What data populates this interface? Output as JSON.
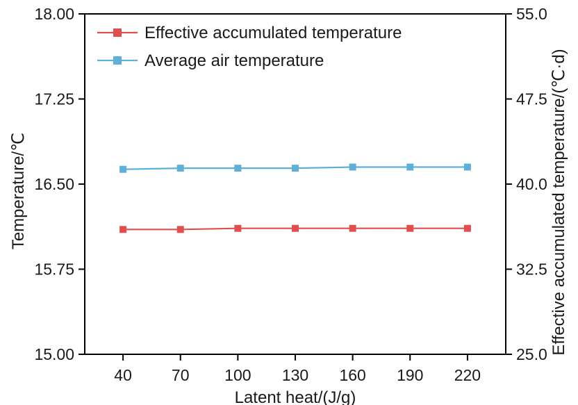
{
  "chart_data": {
    "type": "line",
    "title": "",
    "grid": false,
    "x_axis": {
      "label": "Latent heat/(J/g)",
      "min": 20,
      "max": 240,
      "tick_values": [
        40,
        70,
        100,
        130,
        160,
        190,
        220
      ],
      "ticks": [
        "40",
        "70",
        "100",
        "130",
        "160",
        "190",
        "220"
      ]
    },
    "left_axis": {
      "label": "Temperature/℃",
      "min": 15.0,
      "max": 18.0,
      "tick_values": [
        18.0,
        17.25,
        16.5,
        15.75,
        15.0
      ],
      "ticks": [
        "18.00",
        "17.25",
        "16.50",
        "15.75",
        "15.00"
      ]
    },
    "right_axis": {
      "label": "Effective accumulated temperature/(℃·d)",
      "min": 25.0,
      "max": 55.0,
      "tick_values": [
        55.0,
        47.5,
        40.0,
        32.5,
        25.0
      ],
      "ticks": [
        "55.0",
        "47.5",
        "40.0",
        "32.5",
        "25.0"
      ]
    },
    "legend": {
      "position": "top-left-inside"
    },
    "series": [
      {
        "name": "Effective accumulated temperature",
        "axis": "right",
        "color": "#e04f4f",
        "marker": "square",
        "values": [
          36.0,
          36.0,
          36.1,
          36.1,
          36.1,
          36.1,
          36.1
        ]
      },
      {
        "name": "Average air temperature",
        "axis": "left",
        "color": "#5fb0d8",
        "marker": "square",
        "values": [
          16.63,
          16.64,
          16.64,
          16.64,
          16.65,
          16.65,
          16.65
        ]
      }
    ]
  },
  "styles": {
    "text_color": "#1a1a1a",
    "frame_color": "#000000",
    "background": "#ffffff"
  }
}
